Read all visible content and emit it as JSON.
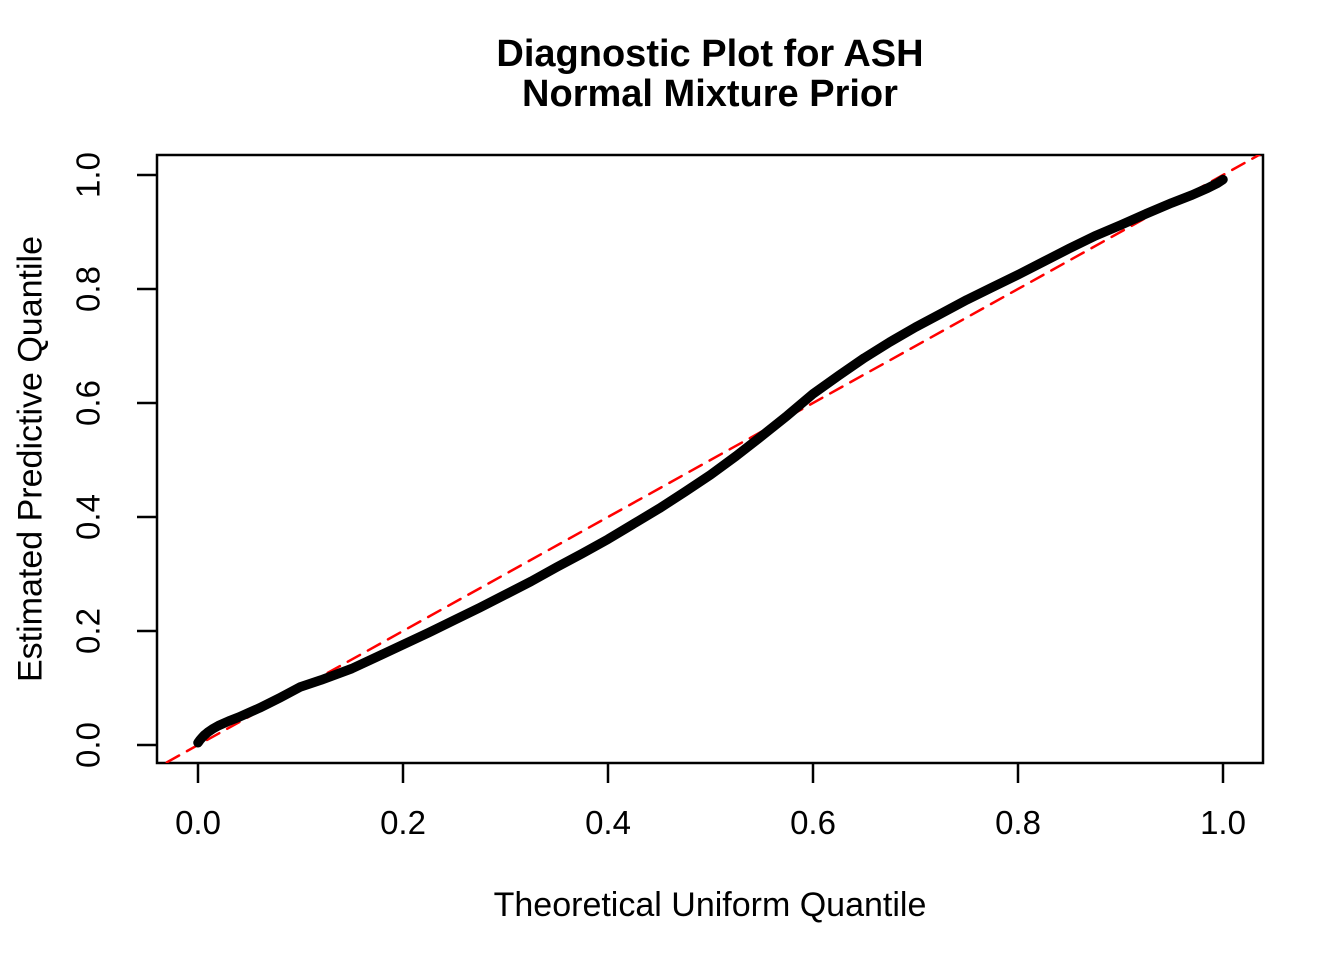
{
  "figure": {
    "title_line1": "Diagnostic Plot for ASH",
    "title_line2": "Normal Mixture Prior",
    "xlabel": "Theoretical Uniform Quantile",
    "ylabel": "Estimated Predictive Quantile"
  },
  "ticks": {
    "x_labels": [
      "0.0",
      "0.2",
      "0.4",
      "0.6",
      "0.8",
      "1.0"
    ],
    "y_labels": [
      "0.0",
      "0.2",
      "0.4",
      "0.6",
      "0.8",
      "1.0"
    ]
  },
  "colors": {
    "background": "#FFFFFF",
    "axis": "#000000",
    "curve": "#000000",
    "reference_line": "#FF0000"
  },
  "chart_data": {
    "type": "line",
    "title": "Diagnostic Plot for ASH\nNormal Mixture Prior",
    "xlabel": "Theoretical Uniform Quantile",
    "ylabel": "Estimated Predictive Quantile",
    "xlim": [
      -0.04,
      1.04
    ],
    "ylim": [
      -0.04,
      1.04
    ],
    "x_ticks": [
      0.0,
      0.2,
      0.4,
      0.6,
      0.8,
      1.0
    ],
    "y_ticks": [
      0.0,
      0.2,
      0.4,
      0.6,
      0.8,
      1.0
    ],
    "grid": false,
    "legend": "none",
    "series": [
      {
        "name": "estimated-vs-theoretical-quantiles",
        "style": "solid",
        "color": "#000000",
        "linewidth": 9.5,
        "x": [
          0.0,
          0.002,
          0.004,
          0.006,
          0.008,
          0.01,
          0.015,
          0.02,
          0.03,
          0.04,
          0.05,
          0.06,
          0.08,
          0.1,
          0.12,
          0.15,
          0.175,
          0.2,
          0.225,
          0.25,
          0.275,
          0.3,
          0.325,
          0.35,
          0.375,
          0.4,
          0.425,
          0.45,
          0.475,
          0.5,
          0.525,
          0.55,
          0.575,
          0.6,
          0.625,
          0.65,
          0.675,
          0.7,
          0.725,
          0.75,
          0.775,
          0.8,
          0.825,
          0.85,
          0.875,
          0.9,
          0.925,
          0.95,
          0.97,
          0.985,
          0.995,
          1.0
        ],
        "y": [
          0.004,
          0.009,
          0.013,
          0.017,
          0.02,
          0.023,
          0.029,
          0.034,
          0.042,
          0.049,
          0.057,
          0.065,
          0.083,
          0.102,
          0.114,
          0.134,
          0.155,
          0.176,
          0.197,
          0.219,
          0.241,
          0.264,
          0.287,
          0.312,
          0.336,
          0.361,
          0.388,
          0.415,
          0.444,
          0.474,
          0.507,
          0.542,
          0.578,
          0.616,
          0.648,
          0.679,
          0.707,
          0.733,
          0.757,
          0.781,
          0.803,
          0.825,
          0.848,
          0.871,
          0.893,
          0.912,
          0.932,
          0.951,
          0.965,
          0.977,
          0.986,
          0.992
        ]
      },
      {
        "name": "reference-diagonal",
        "style": "dashed",
        "color": "#FF0000",
        "linewidth": 2.5,
        "x": [
          -0.05,
          1.05
        ],
        "y": [
          -0.05,
          1.05
        ]
      }
    ]
  }
}
